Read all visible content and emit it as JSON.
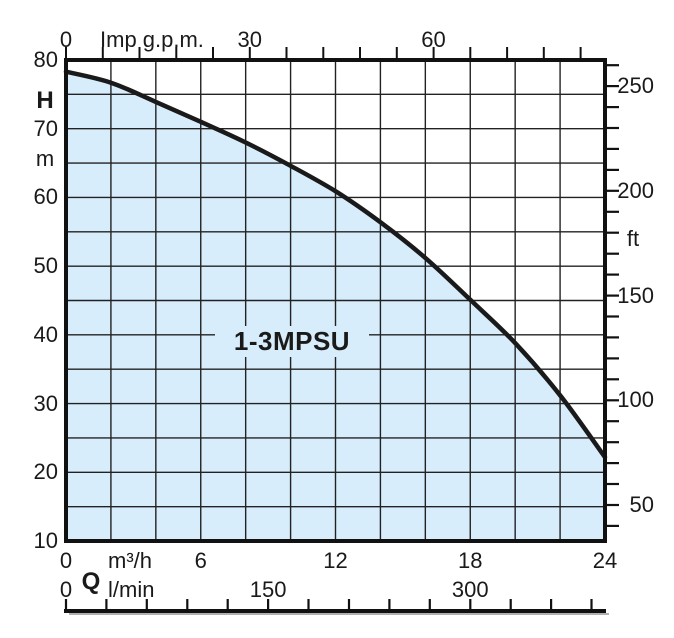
{
  "chart_data": {
    "type": "area",
    "title": "1-3MPSU",
    "series": [
      {
        "name": "1-3MPSU head-flow curve",
        "x_m3h": [
          0,
          2,
          4,
          6,
          8,
          10,
          12,
          14,
          16,
          18,
          20,
          22,
          24
        ],
        "y_head_m": [
          78.3,
          76.7,
          73.9,
          71.0,
          68.0,
          64.6,
          60.9,
          56.4,
          51.2,
          45.1,
          38.8,
          31.2,
          22.2
        ]
      }
    ],
    "x_axis_bottom": {
      "unit": "m³/h",
      "tick_labels": [
        0,
        6,
        12,
        18,
        24
      ],
      "range": [
        0,
        24
      ],
      "grid_step": 2
    },
    "x_axis_bottom_secondary": {
      "title": "Q",
      "unit": "l/min",
      "tick_labels": [
        0,
        150,
        300
      ],
      "range": [
        0,
        400
      ],
      "minor_step": 30
    },
    "x_axis_top": {
      "label": "Imp g.p.m.",
      "tick_labels": [
        0,
        30,
        60
      ],
      "minor_step": 6,
      "minor_max": 84
    },
    "y_axis_left": {
      "title": "H",
      "unit": "m",
      "tick_labels": [
        80,
        70,
        60,
        50,
        40,
        30,
        20,
        10
      ],
      "range": [
        10,
        80
      ],
      "grid_step": 5
    },
    "y_axis_right": {
      "unit": "ft",
      "tick_labels": [
        250,
        200,
        150,
        100,
        50
      ],
      "minor_step": 10,
      "minor_range": [
        40,
        260
      ]
    },
    "grid": true,
    "legend": "none",
    "colors": {
      "fill": "#d8edfb",
      "curve": "#1a1a1a",
      "grid": "#222222",
      "axis": "#111111",
      "background": "#ffffff"
    }
  }
}
